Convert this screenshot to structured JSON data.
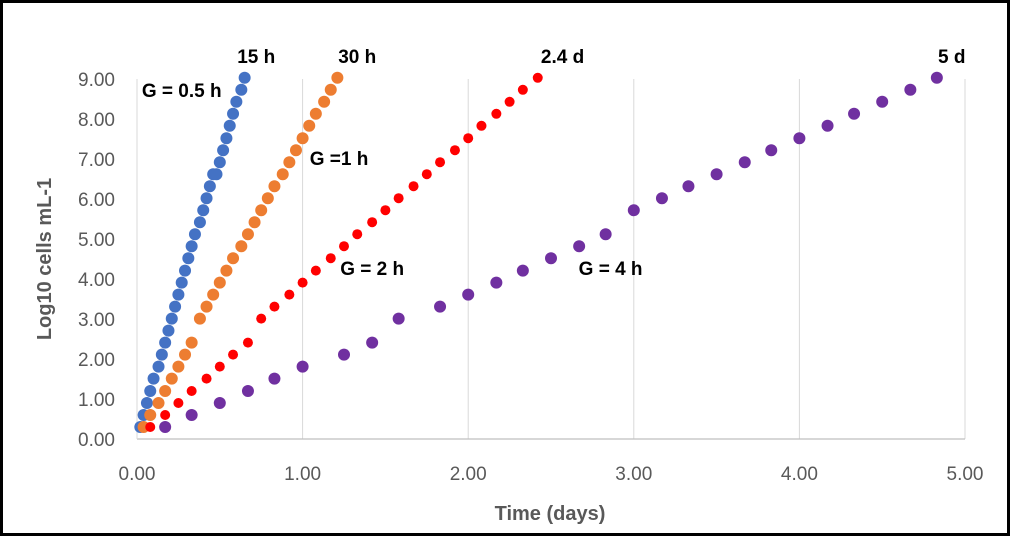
{
  "chart_data": {
    "type": "scatter",
    "xlabel": "Time (days)",
    "ylabel": "Log10 cells mL-1",
    "xlim": [
      0,
      5
    ],
    "ylim": [
      0,
      9
    ],
    "x_ticks": [
      "0.00",
      "1.00",
      "2.00",
      "3.00",
      "4.00",
      "5.00"
    ],
    "y_ticks": [
      "0.00",
      "1.00",
      "2.00",
      "3.00",
      "4.00",
      "5.00",
      "6.00",
      "7.00",
      "8.00",
      "9.00"
    ],
    "grid": "vertical",
    "colors": [
      "#4472C4",
      "#ED7D31",
      "#FF0000",
      "#7030A0"
    ],
    "series": [
      {
        "x": [
          0.02,
          0.04,
          0.06,
          0.08,
          0.1,
          0.13,
          0.15,
          0.17,
          0.19,
          0.21,
          0.23,
          0.25,
          0.27,
          0.29,
          0.31,
          0.33,
          0.35,
          0.38,
          0.4,
          0.42,
          0.44,
          0.46,
          0.48,
          0.5,
          0.52,
          0.54,
          0.56,
          0.58,
          0.6,
          0.63,
          0.65
        ],
        "y": [
          0.3,
          0.6,
          0.9,
          1.2,
          1.51,
          1.81,
          2.11,
          2.41,
          2.71,
          3.01,
          3.31,
          3.61,
          3.91,
          4.21,
          4.52,
          4.82,
          5.12,
          5.42,
          5.72,
          6.02,
          6.32,
          6.62,
          6.62,
          6.92,
          7.22,
          7.52,
          7.83,
          8.13,
          8.43,
          8.73,
          9.03
        ]
      },
      {
        "x": [
          0.04,
          0.08,
          0.13,
          0.17,
          0.21,
          0.25,
          0.29,
          0.33,
          0.38,
          0.42,
          0.46,
          0.5,
          0.54,
          0.58,
          0.63,
          0.67,
          0.71,
          0.75,
          0.79,
          0.83,
          0.88,
          0.92,
          0.96,
          1.0,
          1.04,
          1.08,
          1.13,
          1.17,
          1.21
        ],
        "y": [
          0.3,
          0.6,
          0.9,
          1.2,
          1.51,
          1.81,
          2.11,
          2.41,
          3.01,
          3.31,
          3.61,
          3.91,
          4.21,
          4.52,
          4.82,
          5.12,
          5.42,
          5.72,
          6.02,
          6.32,
          6.62,
          6.92,
          7.22,
          7.52,
          7.83,
          8.13,
          8.43,
          8.73,
          9.03
        ]
      },
      {
        "x": [
          0.08,
          0.17,
          0.25,
          0.33,
          0.42,
          0.5,
          0.58,
          0.67,
          0.75,
          0.83,
          0.92,
          1.0,
          1.08,
          1.17,
          1.25,
          1.33,
          1.42,
          1.5,
          1.58,
          1.67,
          1.75,
          1.83,
          1.92,
          2.0,
          2.08,
          2.17,
          2.25,
          2.33,
          2.42
        ],
        "y": [
          0.3,
          0.6,
          0.9,
          1.2,
          1.51,
          1.81,
          2.11,
          2.41,
          3.01,
          3.31,
          3.61,
          3.91,
          4.21,
          4.52,
          4.82,
          5.12,
          5.42,
          5.72,
          6.02,
          6.32,
          6.62,
          6.92,
          7.22,
          7.52,
          7.83,
          8.13,
          8.43,
          8.73,
          9.03
        ]
      },
      {
        "x": [
          0.17,
          0.33,
          0.5,
          0.67,
          0.83,
          1.0,
          1.25,
          1.42,
          1.58,
          1.83,
          2.0,
          2.17,
          2.33,
          2.5,
          2.67,
          2.83,
          3.0,
          3.17,
          3.33,
          3.5,
          3.67,
          3.83,
          4.0,
          4.17,
          4.33,
          4.5,
          4.67,
          4.83
        ],
        "y": [
          0.3,
          0.6,
          0.9,
          1.2,
          1.51,
          1.81,
          2.11,
          2.41,
          3.01,
          3.31,
          3.61,
          3.91,
          4.21,
          4.52,
          4.82,
          5.12,
          5.72,
          6.02,
          6.32,
          6.62,
          6.92,
          7.22,
          7.52,
          7.83,
          8.13,
          8.43,
          8.73,
          9.03
        ]
      }
    ],
    "annotations": [
      {
        "text": "15 h",
        "x": 0.72,
        "y": 9.4
      },
      {
        "text": "30 h",
        "x": 1.33,
        "y": 9.4
      },
      {
        "text": "2.4 d",
        "x": 2.57,
        "y": 9.4
      },
      {
        "text": "5 d",
        "x": 4.92,
        "y": 9.4
      },
      {
        "text": "G = 0.5 h",
        "x": 0.27,
        "y": 8.55
      },
      {
        "text": "G =1 h",
        "x": 1.22,
        "y": 6.85
      },
      {
        "text": "G = 2 h",
        "x": 1.42,
        "y": 4.1
      },
      {
        "text": "G = 4 h",
        "x": 2.86,
        "y": 4.1
      }
    ]
  }
}
